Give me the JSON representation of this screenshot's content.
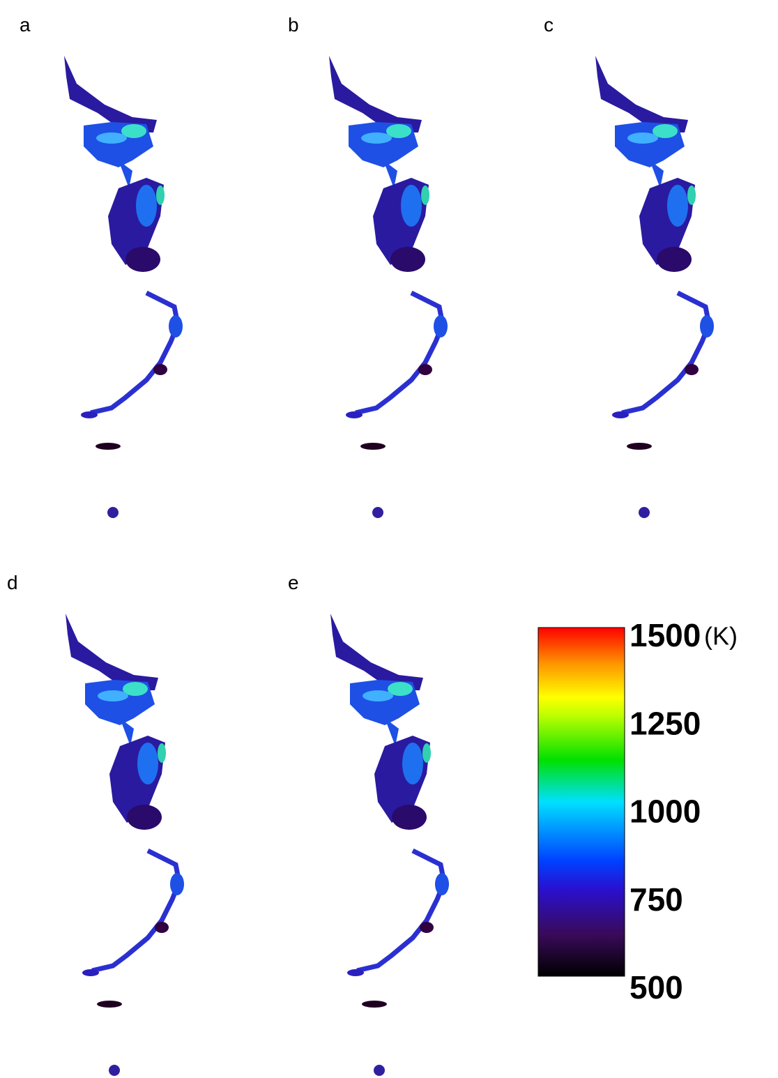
{
  "panels": [
    {
      "label": "a"
    },
    {
      "label": "b"
    },
    {
      "label": "c"
    },
    {
      "label": "d"
    },
    {
      "label": "e"
    }
  ],
  "colorbar": {
    "range": [
      500,
      1500
    ],
    "ticks": [
      1500,
      1250,
      1000,
      750,
      500
    ],
    "unit": "(K)"
  }
}
